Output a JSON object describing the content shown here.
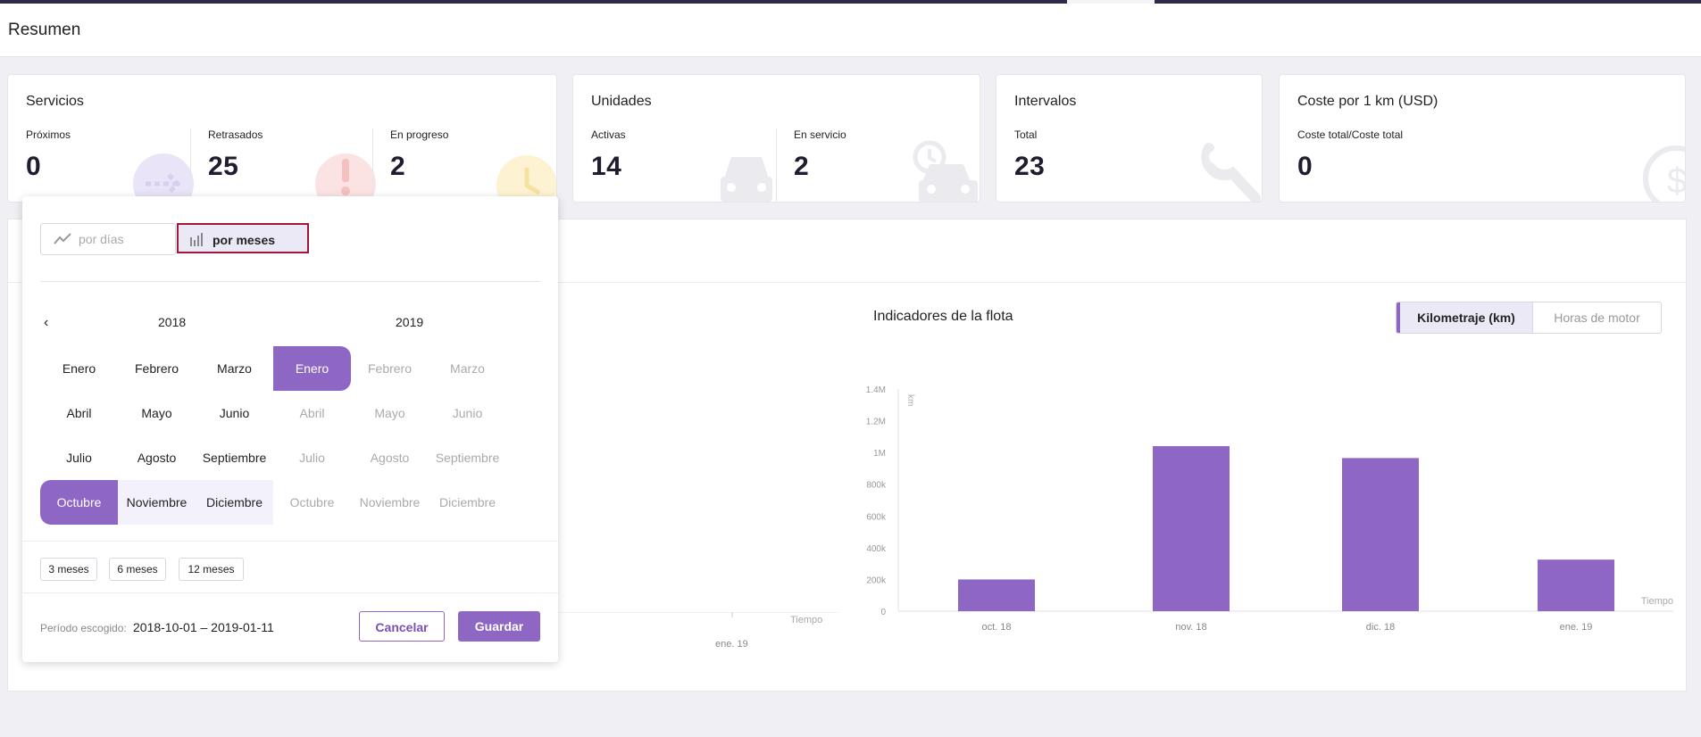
{
  "header": {
    "title": "Resumen"
  },
  "cards": {
    "servicios": {
      "title": "Servicios",
      "stats": [
        {
          "label": "Próximos",
          "value": "0"
        },
        {
          "label": "Retrasados",
          "value": "25"
        },
        {
          "label": "En progreso",
          "value": "2"
        }
      ]
    },
    "unidades": {
      "title": "Unidades",
      "stats": [
        {
          "label": "Activas",
          "value": "14"
        },
        {
          "label": "En servicio",
          "value": "2"
        }
      ]
    },
    "intervalos": {
      "title": "Intervalos",
      "stats": [
        {
          "label": "Total",
          "value": "23"
        }
      ]
    },
    "coste": {
      "title": "Coste por 1 km (USD)",
      "stats": [
        {
          "label": "Coste total/Coste total",
          "value": "0"
        }
      ]
    }
  },
  "picker": {
    "mode_days": "por días",
    "mode_months": "por meses",
    "year_left": "2018",
    "year_right": "2019",
    "months": [
      "Enero",
      "Febrero",
      "Marzo",
      "Abril",
      "Mayo",
      "Junio",
      "Julio",
      "Agosto",
      "Septiembre",
      "Octubre",
      "Noviembre",
      "Diciembre"
    ],
    "quick": [
      "3 meses",
      "6 meses",
      "12 meses"
    ],
    "period_label": "Período escogido:",
    "period_value": "2018-10-01 – 2019-01-11",
    "cancel": "Cancelar",
    "save": "Guardar"
  },
  "left_chart": {
    "x_tick": "ene. 19",
    "x_axis_label": "Tiempo"
  },
  "fleet": {
    "title": "Indicadores de la flota",
    "toggle_km": "Kilometraje (km)",
    "toggle_hours": "Horas de motor"
  },
  "chart_data": {
    "type": "bar",
    "title": "Indicadores de la flota",
    "categories": [
      "oct. 18",
      "nov. 18",
      "dic. 18",
      "ene. 19"
    ],
    "values": [
      200000,
      1040000,
      965000,
      325000
    ],
    "ylabel": "km",
    "xlabel": "Tiempo",
    "ylim": [
      0,
      1400000
    ],
    "yticks": [
      "0",
      "200k",
      "400k",
      "600k",
      "800k",
      "1M",
      "1.2M",
      "1.4M"
    ],
    "color": "#8e66c4",
    "grid": false
  }
}
